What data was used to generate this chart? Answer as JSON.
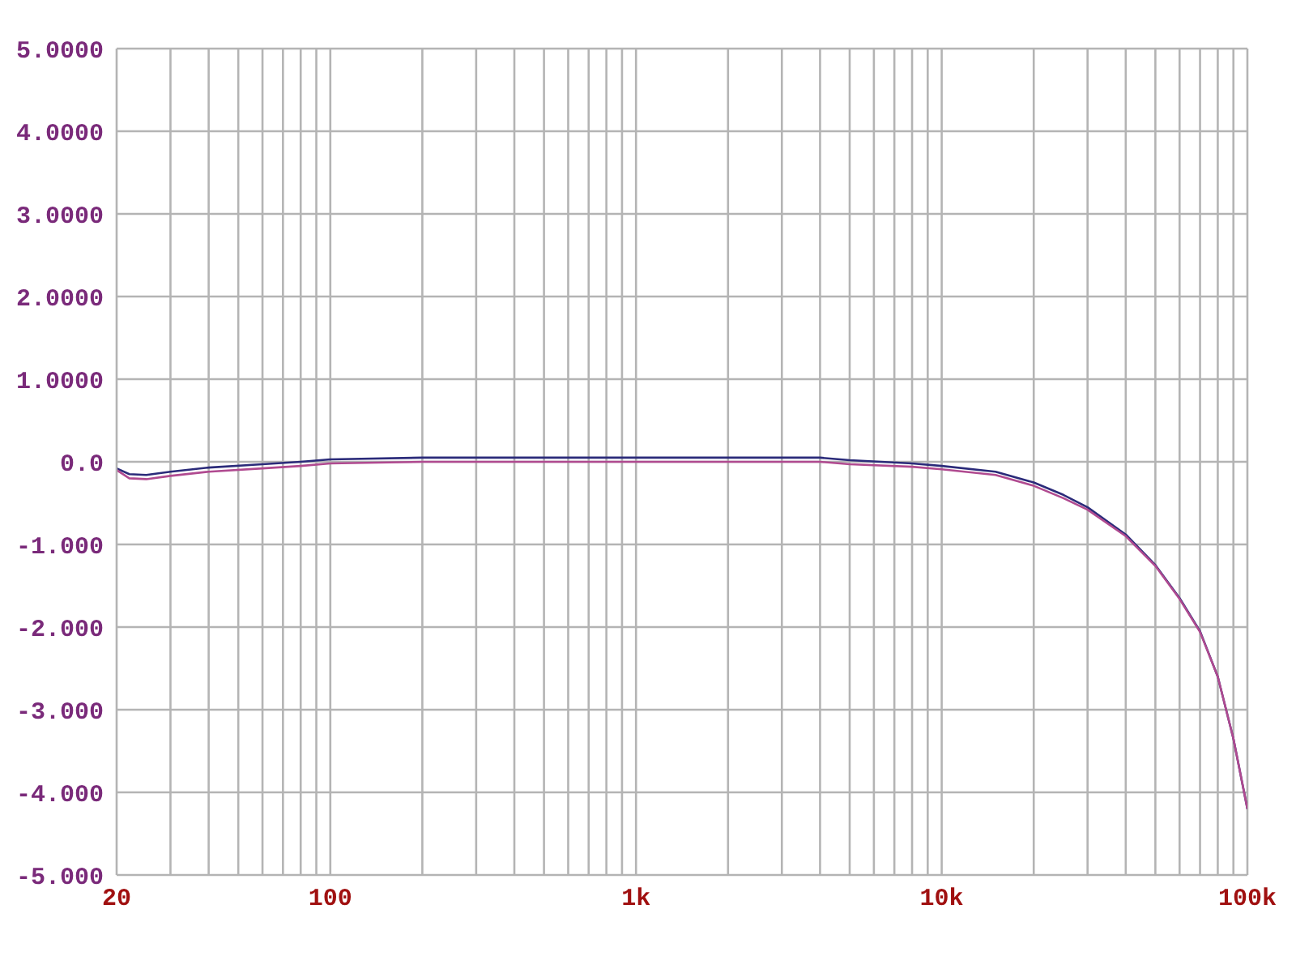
{
  "chart_data": {
    "type": "line",
    "log": "x",
    "grid": true,
    "marker": "none",
    "line_style": "solid",
    "xlim": [
      20,
      100000
    ],
    "ylim": [
      -5,
      5
    ],
    "xticks": [
      20,
      {
        "value": 30,
        "label": null
      },
      {
        "value": 40,
        "label": null
      },
      {
        "value": 50,
        "label": null
      },
      {
        "value": 60,
        "label": null
      },
      {
        "value": 70,
        "label": null
      },
      {
        "value": 80,
        "label": null
      },
      {
        "value": 90,
        "label": null
      },
      100,
      {
        "value": 200,
        "label": null
      },
      {
        "value": 300,
        "label": null
      },
      {
        "value": 400,
        "label": null
      },
      {
        "value": 500,
        "label": null
      },
      {
        "value": 600,
        "label": null
      },
      {
        "value": 700,
        "label": null
      },
      {
        "value": 800,
        "label": null
      },
      {
        "value": 900,
        "label": null
      },
      {
        "value": 1000,
        "label": "1k"
      },
      {
        "value": 2000,
        "label": null
      },
      {
        "value": 3000,
        "label": null
      },
      {
        "value": 4000,
        "label": null
      },
      {
        "value": 5000,
        "label": null
      },
      {
        "value": 6000,
        "label": null
      },
      {
        "value": 7000,
        "label": null
      },
      {
        "value": 8000,
        "label": null
      },
      {
        "value": 9000,
        "label": null
      },
      {
        "value": 10000,
        "label": "10k"
      },
      {
        "value": 20000,
        "label": null
      },
      {
        "value": 30000,
        "label": null
      },
      {
        "value": 40000,
        "label": null
      },
      {
        "value": 50000,
        "label": null
      },
      {
        "value": 60000,
        "label": null
      },
      {
        "value": 70000,
        "label": null
      },
      {
        "value": 80000,
        "label": null
      },
      {
        "value": 90000,
        "label": null
      },
      {
        "value": 100000,
        "label": "100k"
      }
    ],
    "yticks": [
      {
        "value": 5,
        "label": "5.0000"
      },
      {
        "value": 4,
        "label": "4.0000"
      },
      {
        "value": 3,
        "label": "3.0000"
      },
      {
        "value": 2,
        "label": "2.0000"
      },
      {
        "value": 1,
        "label": "1.0000"
      },
      {
        "value": 0,
        "label": "0.0"
      },
      {
        "value": -1,
        "label": "-1.000"
      },
      {
        "value": -2,
        "label": "-2.000"
      },
      {
        "value": -3,
        "label": "-3.000"
      },
      {
        "value": -4,
        "label": "-4.000"
      },
      {
        "value": -5,
        "label": "-5.000"
      }
    ],
    "series": [
      {
        "color": "#2b2b7a",
        "x": [
          20,
          22,
          25,
          30,
          40,
          60,
          80,
          100,
          200,
          1000,
          4000,
          5000,
          8000,
          10000,
          15000,
          20000,
          25000,
          30000,
          40000,
          50000,
          60000,
          70000,
          80000,
          90000,
          100000
        ],
        "values": [
          -0.08,
          -0.15,
          -0.16,
          -0.12,
          -0.07,
          -0.03,
          0.0,
          0.03,
          0.05,
          0.05,
          0.05,
          0.02,
          -0.02,
          -0.05,
          -0.12,
          -0.25,
          -0.4,
          -0.55,
          -0.88,
          -1.25,
          -1.65,
          -2.05,
          -2.6,
          -3.35,
          -4.2
        ]
      },
      {
        "color": "#b04a90",
        "x": [
          20,
          22,
          25,
          30,
          40,
          60,
          80,
          100,
          200,
          1000,
          4000,
          5000,
          8000,
          10000,
          15000,
          20000,
          25000,
          30000,
          40000,
          50000,
          60000,
          70000,
          80000,
          90000,
          100000
        ],
        "values": [
          -0.1,
          -0.2,
          -0.21,
          -0.17,
          -0.12,
          -0.08,
          -0.05,
          -0.02,
          0.0,
          0.0,
          0.0,
          -0.03,
          -0.06,
          -0.09,
          -0.16,
          -0.29,
          -0.44,
          -0.58,
          -0.9,
          -1.26,
          -1.66,
          -2.06,
          -2.6,
          -3.35,
          -4.2
        ]
      }
    ]
  }
}
